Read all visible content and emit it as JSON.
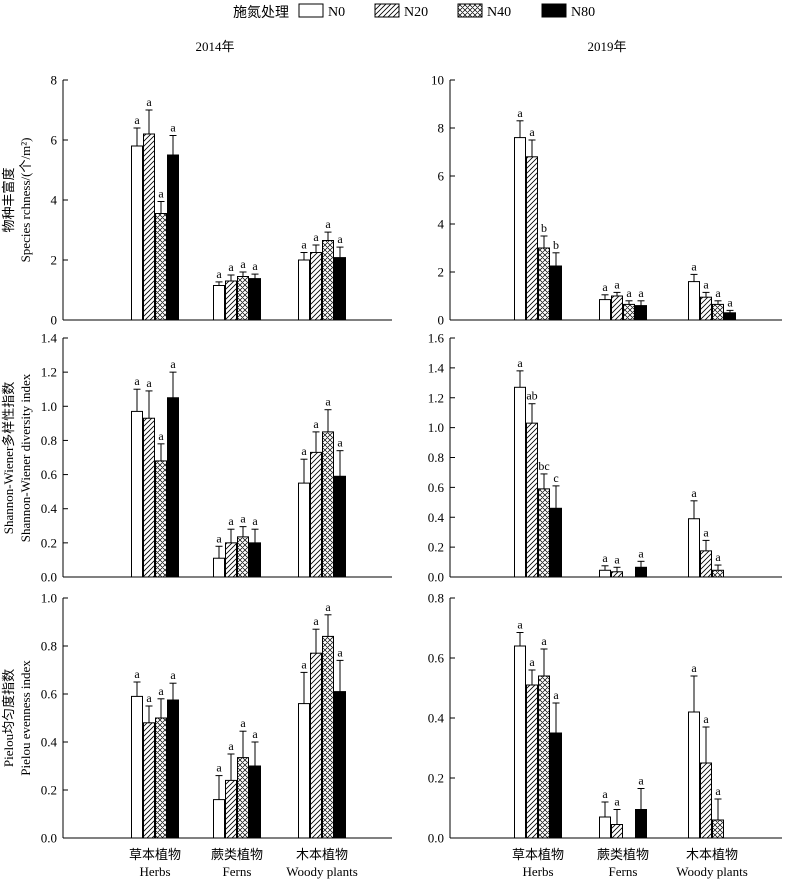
{
  "legend": {
    "title": "施氮处理",
    "items": [
      {
        "label": "N0",
        "pattern": "blank"
      },
      {
        "label": "N20",
        "pattern": "diag"
      },
      {
        "label": "N40",
        "pattern": "cross"
      },
      {
        "label": "N80",
        "pattern": "solid"
      }
    ]
  },
  "columns": [
    "2014年",
    "2019年"
  ],
  "groups": [
    {
      "cn": "草本植物",
      "en": "Herbs"
    },
    {
      "cn": "蕨类植物",
      "en": "Ferns"
    },
    {
      "cn": "木本植物",
      "en": "Woody plants"
    }
  ],
  "row_labels": [
    {
      "cn": "物种丰富度",
      "en": "Species rchness/(个/m²)"
    },
    {
      "cn": "Shannon-Wiener多样性指数",
      "en": "Shannon-Wiener diversity index"
    },
    {
      "cn": "Pielou均匀度指数",
      "en": "Pielou evenness index"
    }
  ],
  "chart_data": [
    {
      "type": "bar",
      "row": 0,
      "col": 0,
      "ylim": [
        0,
        8
      ],
      "yticks": [
        0,
        2,
        4,
        6,
        8
      ],
      "decimals": 0,
      "categories": [
        "草本植物",
        "蕨类植物",
        "木本植物"
      ],
      "series": [
        {
          "name": "N0",
          "values": [
            5.8,
            1.15,
            2.0
          ],
          "errors": [
            0.6,
            0.12,
            0.25
          ],
          "letters": [
            "a",
            "a",
            "a"
          ]
        },
        {
          "name": "N20",
          "values": [
            6.2,
            1.3,
            2.25
          ],
          "errors": [
            0.8,
            0.2,
            0.25
          ],
          "letters": [
            "a",
            "a",
            "a"
          ]
        },
        {
          "name": "N40",
          "values": [
            3.55,
            1.45,
            2.65
          ],
          "errors": [
            0.4,
            0.15,
            0.28
          ],
          "letters": [
            "a",
            "a",
            "a"
          ]
        },
        {
          "name": "N80",
          "values": [
            5.5,
            1.38,
            2.08
          ],
          "errors": [
            0.65,
            0.15,
            0.35
          ],
          "letters": [
            "a",
            "a",
            "a"
          ]
        }
      ]
    },
    {
      "type": "bar",
      "row": 0,
      "col": 1,
      "ylim": [
        0,
        10
      ],
      "yticks": [
        0,
        2,
        4,
        6,
        8,
        10
      ],
      "decimals": 0,
      "categories": [
        "草本植物",
        "蕨类植物",
        "木本植物"
      ],
      "series": [
        {
          "name": "N0",
          "values": [
            7.6,
            0.85,
            1.6
          ],
          "errors": [
            0.7,
            0.2,
            0.3
          ],
          "letters": [
            "a",
            "a",
            "a"
          ]
        },
        {
          "name": "N20",
          "values": [
            6.8,
            1.0,
            0.95
          ],
          "errors": [
            0.7,
            0.15,
            0.2
          ],
          "letters": [
            "a",
            "a",
            "a"
          ]
        },
        {
          "name": "N40",
          "values": [
            3.0,
            0.65,
            0.65
          ],
          "errors": [
            0.5,
            0.15,
            0.15
          ],
          "letters": [
            "b",
            "a",
            "a"
          ]
        },
        {
          "name": "N80",
          "values": [
            2.25,
            0.6,
            0.3
          ],
          "errors": [
            0.55,
            0.2,
            0.1
          ],
          "letters": [
            "b",
            "a",
            "a"
          ]
        }
      ]
    },
    {
      "type": "bar",
      "row": 1,
      "col": 0,
      "ylim": [
        0,
        1.4
      ],
      "yticks": [
        0,
        0.2,
        0.4,
        0.6,
        0.8,
        1.0,
        1.2,
        1.4
      ],
      "decimals": 1,
      "categories": [
        "草本植物",
        "蕨类植物",
        "木本植物"
      ],
      "series": [
        {
          "name": "N0",
          "values": [
            0.97,
            0.11,
            0.55
          ],
          "errors": [
            0.13,
            0.07,
            0.14
          ],
          "letters": [
            "a",
            "a",
            "a"
          ]
        },
        {
          "name": "N20",
          "values": [
            0.93,
            0.2,
            0.73
          ],
          "errors": [
            0.16,
            0.08,
            0.12
          ],
          "letters": [
            "a",
            "a",
            "a"
          ]
        },
        {
          "name": "N40",
          "values": [
            0.68,
            0.235,
            0.85
          ],
          "errors": [
            0.1,
            0.06,
            0.13
          ],
          "letters": [
            "a",
            "a",
            "a"
          ]
        },
        {
          "name": "N80",
          "values": [
            1.05,
            0.2,
            0.59
          ],
          "errors": [
            0.15,
            0.08,
            0.15
          ],
          "letters": [
            "a",
            "a",
            "a"
          ]
        }
      ]
    },
    {
      "type": "bar",
      "row": 1,
      "col": 1,
      "ylim": [
        0,
        1.6
      ],
      "yticks": [
        0,
        0.2,
        0.4,
        0.6,
        0.8,
        1.0,
        1.2,
        1.4,
        1.6
      ],
      "decimals": 1,
      "categories": [
        "草本植物",
        "蕨类植物",
        "木本植物"
      ],
      "series": [
        {
          "name": "N0",
          "values": [
            1.27,
            0.045,
            0.39
          ],
          "errors": [
            0.11,
            0.03,
            0.12
          ],
          "letters": [
            "a",
            "a",
            "a"
          ]
        },
        {
          "name": "N20",
          "values": [
            1.03,
            0.035,
            0.175
          ],
          "errors": [
            0.13,
            0.03,
            0.07
          ],
          "letters": [
            "ab",
            "a",
            "a"
          ]
        },
        {
          "name": "N40",
          "values": [
            0.59,
            null,
            0.045
          ],
          "errors": [
            0.1,
            null,
            0.035
          ],
          "letters": [
            "bc",
            "",
            "a"
          ]
        },
        {
          "name": "N80",
          "values": [
            0.46,
            0.065,
            null
          ],
          "errors": [
            0.15,
            0.04,
            null
          ],
          "letters": [
            "c",
            "a",
            ""
          ]
        }
      ]
    },
    {
      "type": "bar",
      "row": 2,
      "col": 0,
      "ylim": [
        0,
        1.0
      ],
      "yticks": [
        0,
        0.2,
        0.4,
        0.6,
        0.8,
        1.0
      ],
      "decimals": 1,
      "categories": [
        "草本植物",
        "蕨类植物",
        "木本植物"
      ],
      "series": [
        {
          "name": "N0",
          "values": [
            0.59,
            0.16,
            0.56
          ],
          "errors": [
            0.06,
            0.1,
            0.13
          ],
          "letters": [
            "a",
            "a",
            "a"
          ]
        },
        {
          "name": "N20",
          "values": [
            0.48,
            0.24,
            0.77
          ],
          "errors": [
            0.07,
            0.11,
            0.1
          ],
          "letters": [
            "a",
            "a",
            "a"
          ]
        },
        {
          "name": "N40",
          "values": [
            0.5,
            0.335,
            0.84
          ],
          "errors": [
            0.08,
            0.11,
            0.09
          ],
          "letters": [
            "a",
            "a",
            "a"
          ]
        },
        {
          "name": "N80",
          "values": [
            0.575,
            0.3,
            0.61
          ],
          "errors": [
            0.07,
            0.1,
            0.13
          ],
          "letters": [
            "a",
            "a",
            "a"
          ]
        }
      ]
    },
    {
      "type": "bar",
      "row": 2,
      "col": 1,
      "ylim": [
        0,
        0.8
      ],
      "yticks": [
        0,
        0.2,
        0.4,
        0.6,
        0.8
      ],
      "decimals": 1,
      "categories": [
        "草本植物",
        "蕨类植物",
        "木本植物"
      ],
      "series": [
        {
          "name": "N0",
          "values": [
            0.64,
            0.07,
            0.42
          ],
          "errors": [
            0.045,
            0.05,
            0.12
          ],
          "letters": [
            "a",
            "a",
            "a"
          ]
        },
        {
          "name": "N20",
          "values": [
            0.51,
            0.045,
            0.25
          ],
          "errors": [
            0.05,
            0.05,
            0.12
          ],
          "letters": [
            "a",
            "a",
            "a"
          ]
        },
        {
          "name": "N40",
          "values": [
            0.54,
            null,
            0.06
          ],
          "errors": [
            0.09,
            null,
            0.07
          ],
          "letters": [
            "a",
            "",
            "a"
          ]
        },
        {
          "name": "N80",
          "values": [
            0.35,
            0.095,
            null
          ],
          "errors": [
            0.1,
            0.07,
            null
          ],
          "letters": [
            "a",
            "a",
            ""
          ]
        }
      ]
    }
  ]
}
